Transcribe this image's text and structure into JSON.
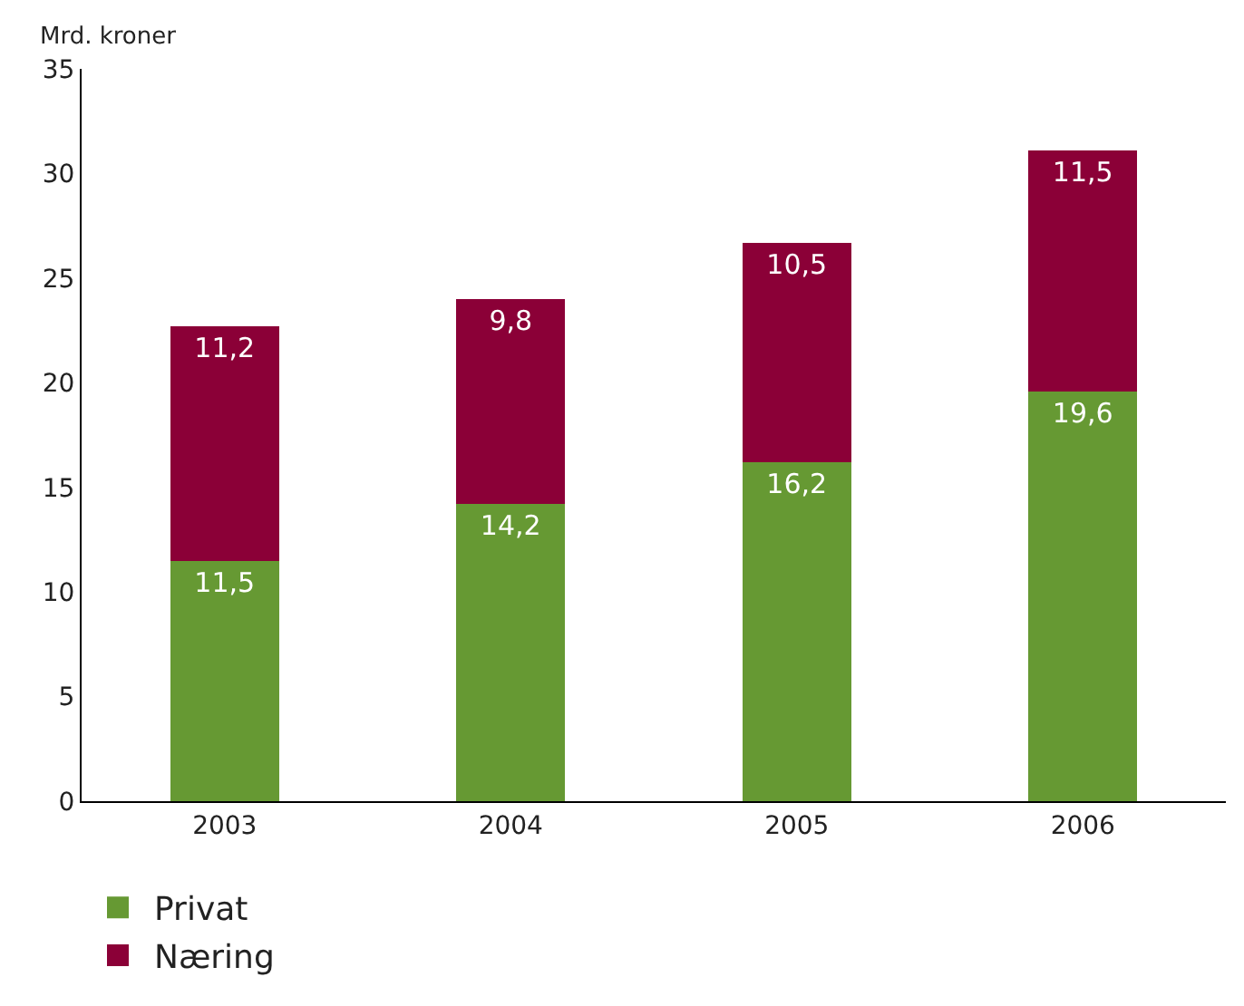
{
  "chart_data": {
    "type": "bar",
    "ylabel": "Mrd. kroner",
    "categories": [
      "2003",
      "2004",
      "2005",
      "2006"
    ],
    "stacked": true,
    "series": [
      {
        "name": "Privat",
        "color": "#669933",
        "values": [
          11.5,
          14.2,
          16.2,
          19.6
        ],
        "value_labels": [
          "11,5",
          "14,2",
          "16,2",
          "19,6"
        ]
      },
      {
        "name": "Næring",
        "color": "#8b0037",
        "values": [
          11.2,
          9.8,
          10.5,
          11.5
        ],
        "value_labels": [
          "11,2",
          "9,8",
          "10,5",
          "11,5"
        ]
      }
    ],
    "ylim": [
      0,
      35
    ],
    "yticks": [
      0,
      5,
      10,
      15,
      20,
      25,
      30,
      35
    ],
    "grid": false,
    "legend": "bottom left"
  }
}
